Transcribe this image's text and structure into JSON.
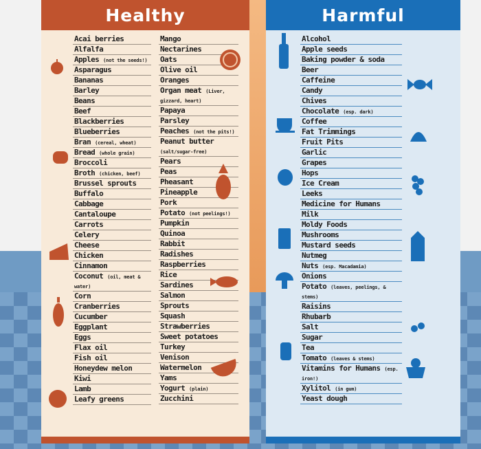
{
  "healthy": {
    "title": "Healthy",
    "color": "#c0532e",
    "col1": [
      {
        "name": "Acai berries"
      },
      {
        "name": "Alfalfa"
      },
      {
        "name": "Apples",
        "note": "(not the seeds!)"
      },
      {
        "name": "Asparagus"
      },
      {
        "name": "Bananas"
      },
      {
        "name": "Barley"
      },
      {
        "name": "Beans"
      },
      {
        "name": "Beef"
      },
      {
        "name": "Blackberries"
      },
      {
        "name": "Blueberries"
      },
      {
        "name": "Bran",
        "note": "(cereal, wheat)"
      },
      {
        "name": "Bread",
        "note": "(whole grain)"
      },
      {
        "name": "Broccoli"
      },
      {
        "name": "Broth",
        "note": "(chicken, beef)"
      },
      {
        "name": "Brussel sprouts"
      },
      {
        "name": "Buffalo"
      },
      {
        "name": "Cabbage"
      },
      {
        "name": "Cantaloupe"
      },
      {
        "name": "Carrots"
      },
      {
        "name": "Celery"
      },
      {
        "name": "Cheese"
      },
      {
        "name": "Chicken"
      },
      {
        "name": "Cinnamon"
      },
      {
        "name": "Coconut",
        "note": "(oil, meat & water)"
      },
      {
        "name": "Corn"
      },
      {
        "name": "Cranberries"
      },
      {
        "name": "Cucumber"
      },
      {
        "name": "Eggplant"
      },
      {
        "name": "Eggs"
      },
      {
        "name": "Flax oil"
      },
      {
        "name": "Fish oil"
      },
      {
        "name": "Honeydew melon"
      },
      {
        "name": "Kiwi"
      },
      {
        "name": "Lamb"
      },
      {
        "name": "Leafy greens"
      }
    ],
    "col2": [
      {
        "name": "Mango"
      },
      {
        "name": "Nectarines"
      },
      {
        "name": "Oats"
      },
      {
        "name": "Olive oil"
      },
      {
        "name": "Oranges"
      },
      {
        "name": "Organ meat",
        "note": "(Liver, gizzard, heart)"
      },
      {
        "name": "Papaya"
      },
      {
        "name": "Parsley"
      },
      {
        "name": "Peaches",
        "note": "(not the pits!)"
      },
      {
        "name": "Peanut butter",
        "note": "(salt/sugar-free)"
      },
      {
        "name": "Pears"
      },
      {
        "name": "Peas"
      },
      {
        "name": "Pheasant"
      },
      {
        "name": "Pineapple"
      },
      {
        "name": "Pork"
      },
      {
        "name": "Potato",
        "note": "(not peelings!)"
      },
      {
        "name": "Pumpkin"
      },
      {
        "name": "Quinoa"
      },
      {
        "name": "Rabbit"
      },
      {
        "name": "Radishes"
      },
      {
        "name": "Raspberries"
      },
      {
        "name": "Rice"
      },
      {
        "name": "Sardines"
      },
      {
        "name": "Salmon"
      },
      {
        "name": "Sprouts"
      },
      {
        "name": "Squash"
      },
      {
        "name": "Strawberries"
      },
      {
        "name": "Sweet potatoes"
      },
      {
        "name": "Turkey"
      },
      {
        "name": "Venison"
      },
      {
        "name": "Watermelon"
      },
      {
        "name": "Yams"
      },
      {
        "name": "Yogurt",
        "note": "(plain)"
      },
      {
        "name": "Zucchini"
      }
    ]
  },
  "harmful": {
    "title": "Harmful",
    "color": "#1a6fb8",
    "items": [
      {
        "name": "Alcohol"
      },
      {
        "name": "Apple seeds"
      },
      {
        "name": "Baking powder & soda"
      },
      {
        "name": "Beer"
      },
      {
        "name": "Caffeine"
      },
      {
        "name": "Candy"
      },
      {
        "name": "Chives"
      },
      {
        "name": "Chocolate",
        "note": "(esp. dark)"
      },
      {
        "name": "Coffee"
      },
      {
        "name": "Fat Trimmings"
      },
      {
        "name": "Fruit Pits"
      },
      {
        "name": "Garlic"
      },
      {
        "name": "Grapes"
      },
      {
        "name": "Hops"
      },
      {
        "name": "Ice Cream"
      },
      {
        "name": "Leeks"
      },
      {
        "name": "Medicine for Humans"
      },
      {
        "name": "Milk"
      },
      {
        "name": "Moldy Foods"
      },
      {
        "name": "Mushrooms"
      },
      {
        "name": "Mustard seeds"
      },
      {
        "name": "Nutmeg"
      },
      {
        "name": "Nuts",
        "note": "(esp. Macadamia)"
      },
      {
        "name": "Onions"
      },
      {
        "name": "Potato",
        "note": "(leaves, peelings, & stems)"
      },
      {
        "name": "Raisins"
      },
      {
        "name": "Rhubarb"
      },
      {
        "name": "Salt"
      },
      {
        "name": "Sugar"
      },
      {
        "name": "Tea"
      },
      {
        "name": "Tomato",
        "note": "(leaves & stems)"
      },
      {
        "name": "Vitamins for Humans",
        "note": "(esp. iron!)"
      },
      {
        "name": "Xylitol",
        "note": "(in gum)"
      },
      {
        "name": "Yeast dough"
      }
    ]
  }
}
